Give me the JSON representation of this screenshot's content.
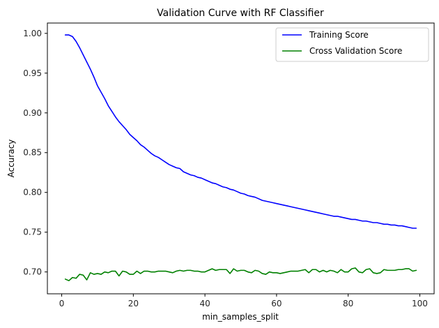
{
  "chart_data": {
    "type": "line",
    "title": "Validation Curve with RF Classifier",
    "xlabel": "min_samples_split",
    "ylabel": "Accuracy",
    "xlim": [
      -4,
      104
    ],
    "ylim": [
      0.6725,
      1.013
    ],
    "xticks": [
      0,
      20,
      40,
      60,
      80,
      100
    ],
    "xtick_labels": [
      "0",
      "20",
      "40",
      "60",
      "80",
      "100"
    ],
    "yticks": [
      0.7,
      0.75,
      0.8,
      0.85,
      0.9,
      0.95,
      1.0
    ],
    "ytick_labels": [
      "0.70",
      "0.75",
      "0.80",
      "0.85",
      "0.90",
      "0.95",
      "1.00"
    ],
    "grid": false,
    "legend_position": "top-right",
    "x": [
      1,
      2,
      3,
      4,
      5,
      6,
      7,
      8,
      9,
      10,
      11,
      12,
      13,
      14,
      15,
      16,
      17,
      18,
      19,
      20,
      21,
      22,
      23,
      24,
      25,
      26,
      27,
      28,
      29,
      30,
      31,
      32,
      33,
      34,
      35,
      36,
      37,
      38,
      39,
      40,
      41,
      42,
      43,
      44,
      45,
      46,
      47,
      48,
      49,
      50,
      51,
      52,
      53,
      54,
      55,
      56,
      57,
      58,
      59,
      60,
      61,
      62,
      63,
      64,
      65,
      66,
      67,
      68,
      69,
      70,
      71,
      72,
      73,
      74,
      75,
      76,
      77,
      78,
      79,
      80,
      81,
      82,
      83,
      84,
      85,
      86,
      87,
      88,
      89,
      90,
      91,
      92,
      93,
      94,
      95,
      96,
      97,
      98,
      99
    ],
    "series": [
      {
        "name": "Training Score",
        "color": "#0000ff",
        "values": [
          0.998,
          0.998,
          0.996,
          0.99,
          0.982,
          0.973,
          0.964,
          0.955,
          0.945,
          0.934,
          0.926,
          0.918,
          0.909,
          0.902,
          0.895,
          0.889,
          0.884,
          0.879,
          0.873,
          0.869,
          0.865,
          0.86,
          0.857,
          0.853,
          0.849,
          0.846,
          0.844,
          0.841,
          0.838,
          0.835,
          0.833,
          0.831,
          0.83,
          0.826,
          0.824,
          0.822,
          0.821,
          0.819,
          0.818,
          0.816,
          0.814,
          0.812,
          0.811,
          0.809,
          0.807,
          0.806,
          0.804,
          0.803,
          0.801,
          0.799,
          0.798,
          0.796,
          0.795,
          0.794,
          0.792,
          0.79,
          0.789,
          0.788,
          0.787,
          0.786,
          0.785,
          0.784,
          0.783,
          0.782,
          0.781,
          0.78,
          0.779,
          0.778,
          0.777,
          0.776,
          0.775,
          0.774,
          0.773,
          0.772,
          0.771,
          0.77,
          0.77,
          0.769,
          0.768,
          0.767,
          0.766,
          0.766,
          0.765,
          0.764,
          0.764,
          0.763,
          0.762,
          0.762,
          0.761,
          0.76,
          0.76,
          0.759,
          0.759,
          0.758,
          0.758,
          0.757,
          0.756,
          0.755,
          0.755
        ]
      },
      {
        "name": "Cross Validation Score",
        "color": "#008000",
        "values": [
          0.691,
          0.689,
          0.693,
          0.692,
          0.697,
          0.696,
          0.69,
          0.699,
          0.697,
          0.698,
          0.697,
          0.7,
          0.699,
          0.701,
          0.701,
          0.695,
          0.701,
          0.7,
          0.697,
          0.697,
          0.701,
          0.698,
          0.701,
          0.701,
          0.7,
          0.7,
          0.701,
          0.701,
          0.701,
          0.7,
          0.699,
          0.701,
          0.702,
          0.701,
          0.702,
          0.702,
          0.701,
          0.701,
          0.7,
          0.7,
          0.702,
          0.704,
          0.702,
          0.703,
          0.703,
          0.703,
          0.698,
          0.704,
          0.701,
          0.702,
          0.702,
          0.7,
          0.699,
          0.702,
          0.701,
          0.698,
          0.697,
          0.7,
          0.699,
          0.699,
          0.698,
          0.699,
          0.7,
          0.701,
          0.701,
          0.701,
          0.702,
          0.703,
          0.699,
          0.703,
          0.703,
          0.7,
          0.702,
          0.7,
          0.702,
          0.701,
          0.699,
          0.703,
          0.7,
          0.7,
          0.704,
          0.705,
          0.7,
          0.699,
          0.703,
          0.704,
          0.699,
          0.698,
          0.699,
          0.703,
          0.702,
          0.702,
          0.702,
          0.703,
          0.703,
          0.704,
          0.704,
          0.701,
          0.702
        ]
      }
    ]
  }
}
